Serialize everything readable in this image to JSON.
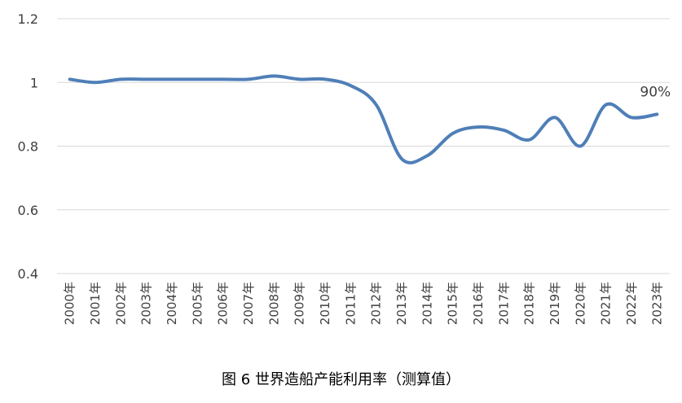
{
  "caption": "图 6 世界造船产能利用率（测算值）",
  "chart_data": {
    "type": "line",
    "title": "",
    "xlabel": "",
    "ylabel": "",
    "categories": [
      "2000年",
      "2001年",
      "2002年",
      "2003年",
      "2004年",
      "2005年",
      "2006年",
      "2007年",
      "2008年",
      "2009年",
      "2010年",
      "2011年",
      "2012年",
      "2013年",
      "2014年",
      "2015年",
      "2016年",
      "2017年",
      "2018年",
      "2019年",
      "2020年",
      "2021年",
      "2022年",
      "2023年"
    ],
    "yticks": [
      "0.4",
      "0.6",
      "0.8",
      "1",
      "1.2"
    ],
    "ylim": [
      0.4,
      1.2
    ],
    "grid": true,
    "legend": "none",
    "line_color": "#4f7fb8",
    "series": [
      {
        "values": [
          1.01,
          1.0,
          1.01,
          1.01,
          1.01,
          1.01,
          1.01,
          1.01,
          1.02,
          1.01,
          1.01,
          0.99,
          0.93,
          0.76,
          0.77,
          0.84,
          0.86,
          0.85,
          0.82,
          0.89,
          0.8,
          0.93,
          0.89,
          0.9
        ]
      }
    ],
    "annotations": [
      {
        "category": "2023年",
        "text": "90%"
      }
    ]
  }
}
